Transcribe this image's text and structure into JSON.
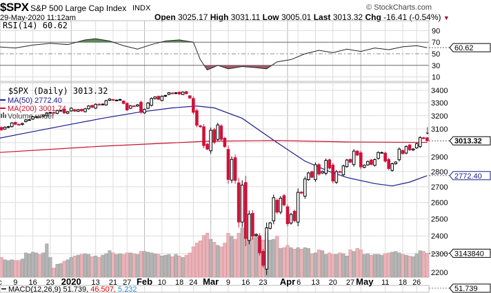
{
  "header": {
    "symbol": "$SPX",
    "name": "S&P 500 Large Cap Index",
    "exchange": "INDX",
    "copyright": "© StockCharts.com",
    "datetime": "29-May-2020 11:12am",
    "open_label": "Open",
    "open": "3025.17",
    "high_label": "High",
    "high": "3031.11",
    "low_label": "Low",
    "low": "3005.01",
    "last_label": "Last",
    "last": "3013.32",
    "chg_label": "Chg",
    "chg": "-16.41 (-0.54%)",
    "down_arrow": "▼"
  },
  "rsi": {
    "label": "RSI(14) 60.62",
    "value_tag": "60.62",
    "ticks": [
      "90",
      "70",
      "50",
      "30",
      "10"
    ]
  },
  "legend": {
    "price": "$SPX (Daily) 3013.32",
    "ma50": "MA(50) 2772.40",
    "ma200": "MA(200) 3001.74",
    "volume": "Volume undef"
  },
  "tags": {
    "last": "3013.32",
    "ma50": "2772.40",
    "volume": "3143840",
    "macd": "51.739"
  },
  "macd": {
    "label": "MACD(12,26,9)",
    "v1": "51.739,",
    "v2": "46.507,",
    "v3": "5.232"
  },
  "colors": {
    "up": "#000000",
    "down": "#d0103a",
    "ma50": "#1a1a8c",
    "ma200": "#c8102e",
    "vol_up": "#b4b4b4",
    "vol_down": "#e8b4bb",
    "grid": "#dcdcdc",
    "rsi_fill": "#5a8a5a"
  },
  "chart_data": {
    "type": "candlestick",
    "title": "$SPX S&P 500 Large Cap Index (Daily)",
    "y_ticks": [
      3400,
      3300,
      3200,
      3100,
      3000,
      2900,
      2800,
      2700,
      2600,
      2500,
      2400,
      2300,
      2200
    ],
    "y_tick_labels": [
      "3400",
      "3300",
      "3200",
      "3100",
      "2900",
      "2800",
      "2700",
      "2600",
      "2500",
      "2400",
      "2300",
      "2200"
    ],
    "ylim": [
      2160,
      3450
    ],
    "x_labels": [
      {
        "label": "ec",
        "i": 0,
        "bold": false
      },
      {
        "label": "9",
        "i": 5,
        "bold": false
      },
      {
        "label": "16",
        "i": 10,
        "bold": false
      },
      {
        "label": "23",
        "i": 15,
        "bold": false
      },
      {
        "label": "2020",
        "i": 21,
        "bold": true
      },
      {
        "label": "13",
        "i": 28,
        "bold": false
      },
      {
        "label": "21",
        "i": 33,
        "bold": false
      },
      {
        "label": "27",
        "i": 37,
        "bold": false
      },
      {
        "label": "Feb",
        "i": 42,
        "bold": true
      },
      {
        "label": "10",
        "i": 47,
        "bold": false
      },
      {
        "label": "18",
        "i": 52,
        "bold": false
      },
      {
        "label": "24",
        "i": 56,
        "bold": false
      },
      {
        "label": "Mar",
        "i": 61,
        "bold": true
      },
      {
        "label": "9",
        "i": 66,
        "bold": false
      },
      {
        "label": "16",
        "i": 71,
        "bold": false
      },
      {
        "label": "23",
        "i": 76,
        "bold": false
      },
      {
        "label": "Apr",
        "i": 83,
        "bold": true
      },
      {
        "label": "6",
        "i": 86,
        "bold": false
      },
      {
        "label": "13",
        "i": 91,
        "bold": false
      },
      {
        "label": "20",
        "i": 96,
        "bold": false
      },
      {
        "label": "27",
        "i": 101,
        "bold": false
      },
      {
        "label": "May",
        "i": 104,
        "bold": true
      },
      {
        "label": "11",
        "i": 111,
        "bold": false
      },
      {
        "label": "18",
        "i": 116,
        "bold": false
      },
      {
        "label": "26",
        "i": 120,
        "bold": false
      }
    ],
    "close": [
      3113,
      3093,
      3113,
      3117,
      3145,
      3135,
      3132,
      3141,
      3168,
      3169,
      3191,
      3192,
      3191,
      3205,
      3221,
      3224,
      3223,
      3240,
      3240,
      3221,
      3231,
      3258,
      3235,
      3246,
      3237,
      3253,
      3275,
      3265,
      3288,
      3283,
      3289,
      3317,
      3330,
      3321,
      3321,
      3326,
      3295,
      3244,
      3276,
      3273,
      3284,
      3226,
      3249,
      3298,
      3334,
      3346,
      3328,
      3352,
      3358,
      3380,
      3374,
      3380,
      3370,
      3386,
      3373,
      3338,
      3226,
      3128,
      3116,
      2979,
      2954,
      3090,
      3003,
      3130,
      3024,
      2972,
      2747,
      2882,
      2741,
      2481,
      2711,
      2386,
      2529,
      2398,
      2409,
      2305,
      2237,
      2447,
      2476,
      2630,
      2541,
      2627,
      2585,
      2471,
      2527,
      2489,
      2664,
      2659,
      2750,
      2790,
      2762,
      2846,
      2783,
      2800,
      2875,
      2823,
      2737,
      2799,
      2798,
      2837,
      2878,
      2863,
      2940,
      2912,
      2831,
      2842,
      2868,
      2848,
      2881,
      2930,
      2930,
      2870,
      2820,
      2852,
      2864,
      2954,
      2922,
      2972,
      2949,
      2955,
      2992,
      3036,
      3030,
      3013.32
    ],
    "volume_millions": [
      2.5,
      2.6,
      2.3,
      2.2,
      2.3,
      2.2,
      2.2,
      2.4,
      3.2,
      3.1,
      3.3,
      3.2,
      3.0,
      3.2,
      4.4,
      2.6,
      1.2,
      1.7,
      1.8,
      2.1,
      2.3,
      2.6,
      2.8,
      2.9,
      3.0,
      3.1,
      3.0,
      2.7,
      2.8,
      2.6,
      2.9,
      3.1,
      3.5,
      3.2,
      3.0,
      3.1,
      3.0,
      3.2,
      3.2,
      3.1,
      3.0,
      3.4,
      3.4,
      3.3,
      3.2,
      3.1,
      3.0,
      2.8,
      2.9,
      3.0,
      2.7,
      3.0,
      2.8,
      2.6,
      2.9,
      3.2,
      4.0,
      4.5,
      4.8,
      5.5,
      5.8,
      5.0,
      4.6,
      4.2,
      4.0,
      4.5,
      5.8,
      5.4,
      5.0,
      5.8,
      6.5,
      5.3,
      4.8,
      5.2,
      5.6,
      5.2,
      4.9,
      5.8,
      4.9,
      5.0,
      5.4,
      3.8,
      3.9,
      4.2,
      3.9,
      3.7,
      3.9,
      3.7,
      3.9,
      3.8,
      3.1,
      3.2,
      3.6,
      3.5,
      3.0,
      3.2,
      3.0,
      3.0,
      3.2,
      3.1,
      2.8,
      3.6,
      3.4,
      3.8,
      3.6,
      3.0,
      3.1,
      2.9,
      3.0,
      3.0,
      2.9,
      3.1,
      3.2,
      3.3,
      3.4,
      3.2,
      3.0,
      2.9,
      2.8,
      2.7,
      3.1,
      3.5,
      3.4,
      3.14384
    ],
    "ma50": {
      "i": [
        0,
        10,
        20,
        30,
        40,
        50,
        57,
        62,
        70,
        80,
        88,
        95,
        100,
        108,
        113,
        118,
        123
      ],
      "v": [
        3030,
        3080,
        3130,
        3180,
        3225,
        3260,
        3275,
        3260,
        3180,
        3000,
        2870,
        2800,
        2760,
        2720,
        2705,
        2730,
        2772.4
      ]
    },
    "ma200": {
      "i": [
        0,
        30,
        60,
        80,
        100,
        123
      ],
      "v": [
        2930,
        2975,
        3010,
        3015,
        3005,
        3001.74
      ]
    },
    "rsi": {
      "i": [
        0,
        5,
        10,
        15,
        20,
        25,
        28,
        32,
        36,
        40,
        44,
        48,
        52,
        56,
        58,
        60,
        63,
        66,
        70,
        74,
        77,
        80,
        84,
        88,
        92,
        96,
        100,
        104,
        108,
        112,
        116,
        120,
        123
      ],
      "v": [
        62,
        60,
        65,
        68,
        66,
        74,
        76,
        72,
        64,
        58,
        66,
        72,
        74,
        70,
        40,
        22,
        30,
        24,
        28,
        26,
        24,
        36,
        40,
        50,
        56,
        52,
        58,
        54,
        60,
        57,
        62,
        64,
        60.62
      ]
    },
    "rsi_ylim": [
      0,
      100
    ],
    "last_marker_arrow": "↓"
  }
}
